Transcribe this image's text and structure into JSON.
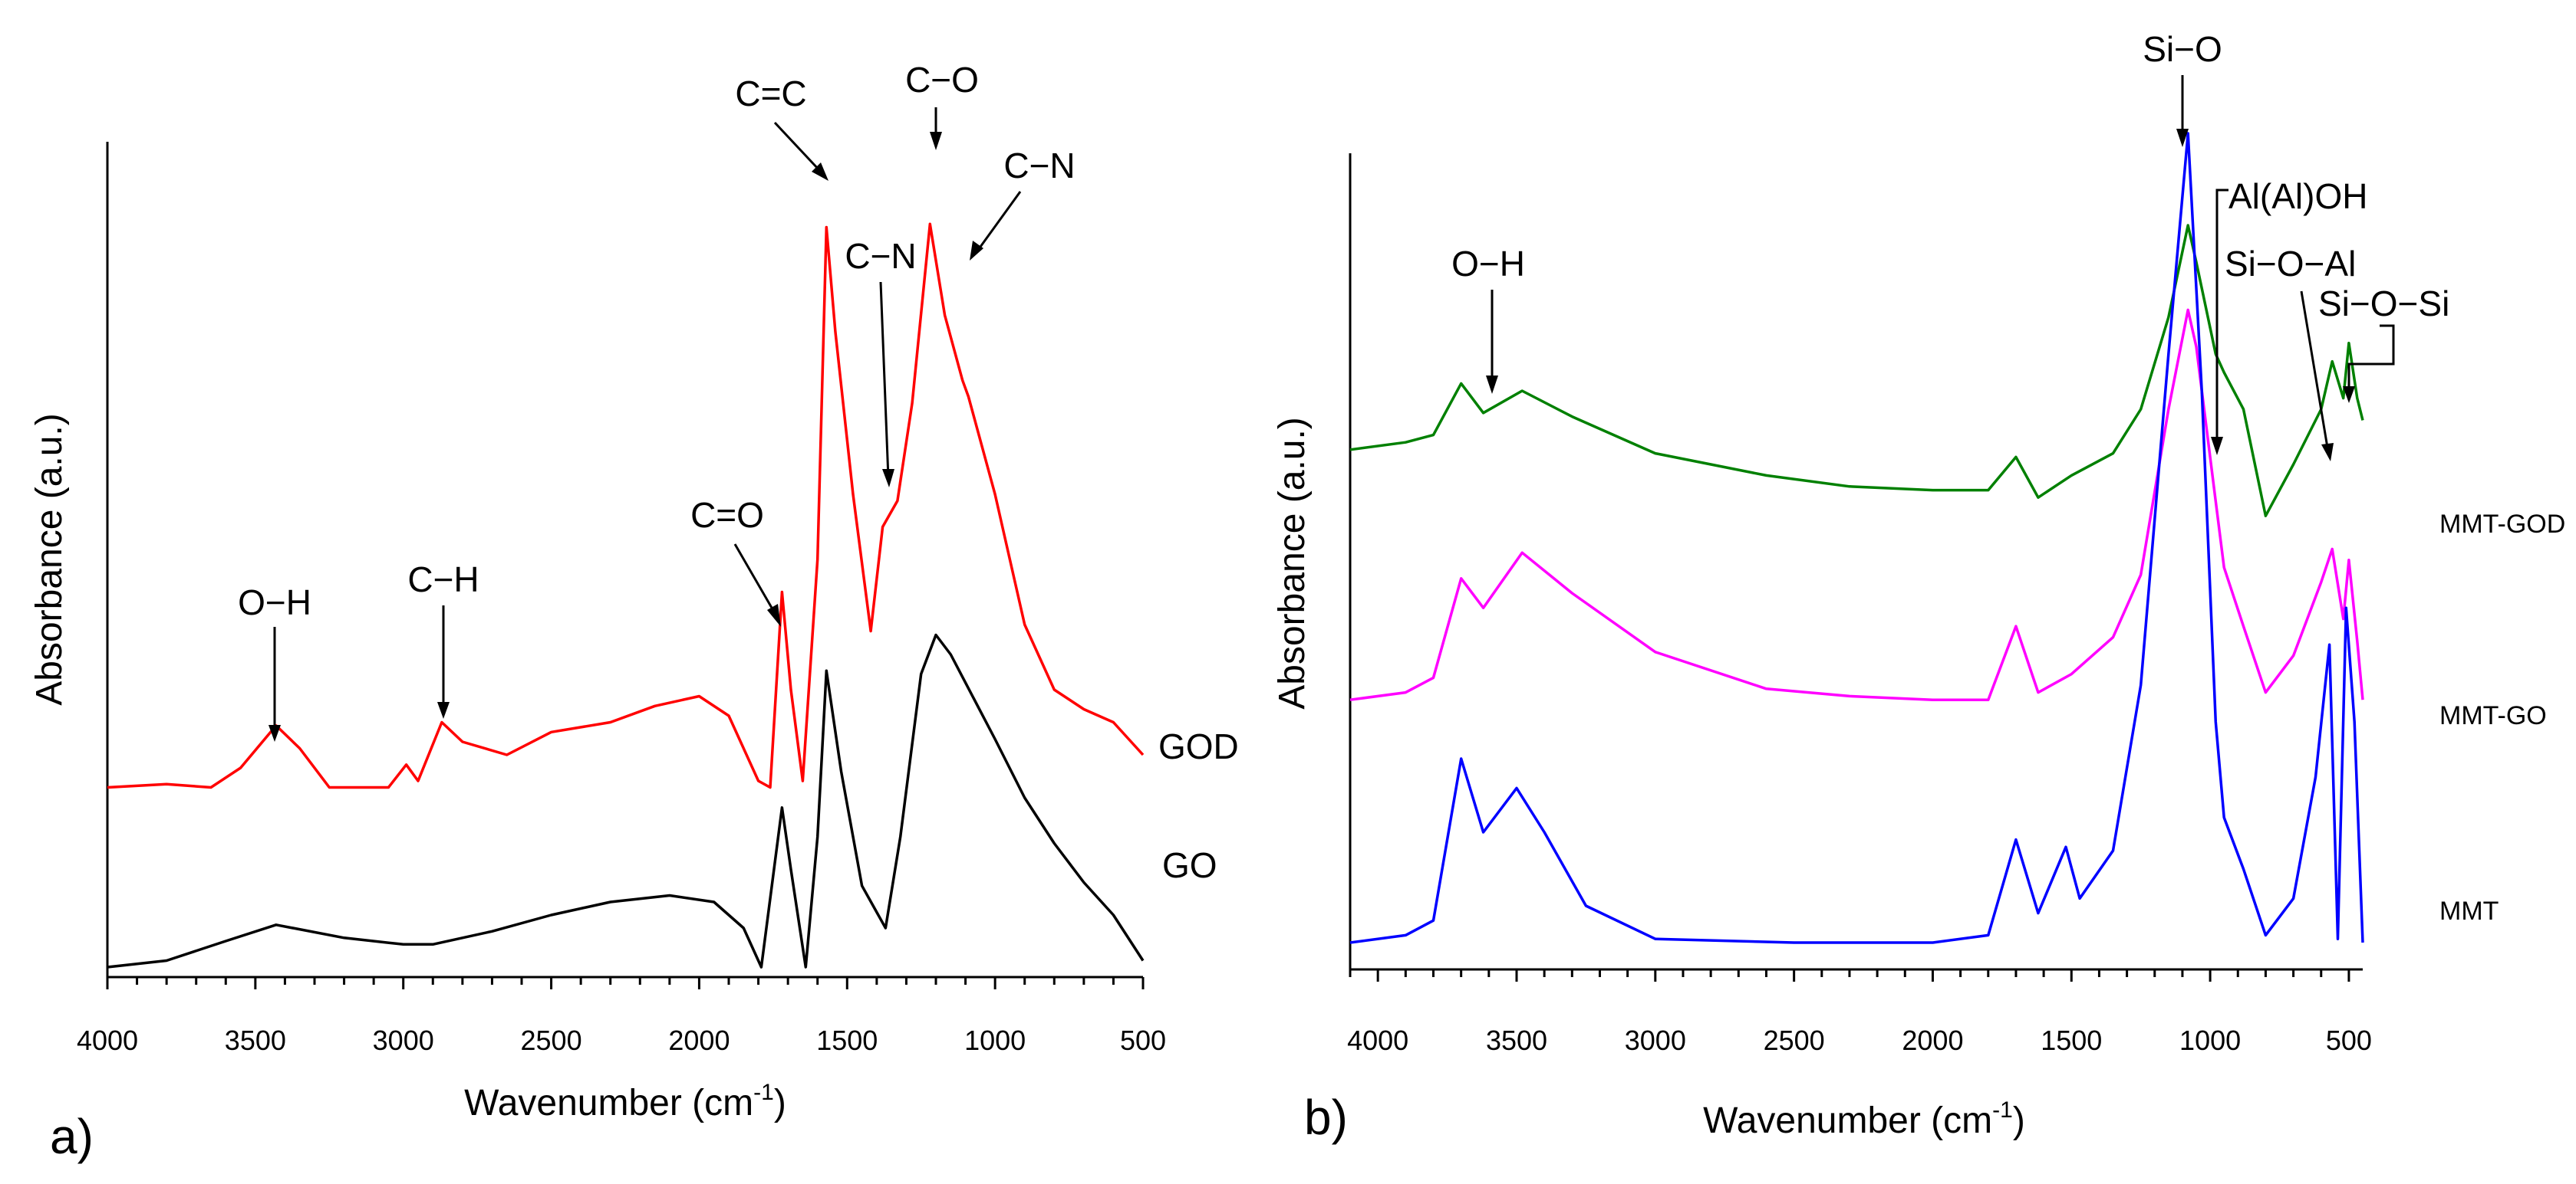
{
  "chart_data": [
    {
      "panel": "a)",
      "type": "line",
      "xlabel": "Wavenumber (cm",
      "xlabel_sup": "-1",
      "xlabel_close": ")",
      "ylabel": "Absorbance (a.u.)",
      "xlim": [
        4000,
        500
      ],
      "x_ticks": [
        4000,
        3500,
        3000,
        2500,
        2000,
        1500,
        1000,
        500
      ],
      "y_ticks_shown": false,
      "series": [
        {
          "name": "GOD",
          "color": "#ff0000",
          "points": [
            [
              4000,
              0.1
            ],
            [
              3800,
              0.11
            ],
            [
              3650,
              0.1
            ],
            [
              3550,
              0.16
            ],
            [
              3430,
              0.29
            ],
            [
              3350,
              0.22
            ],
            [
              3250,
              0.1
            ],
            [
              3050,
              0.1
            ],
            [
              2990,
              0.17
            ],
            [
              2950,
              0.12
            ],
            [
              2870,
              0.3
            ],
            [
              2800,
              0.24
            ],
            [
              2650,
              0.2
            ],
            [
              2500,
              0.27
            ],
            [
              2300,
              0.3
            ],
            [
              2150,
              0.35
            ],
            [
              2000,
              0.38
            ],
            [
              1900,
              0.32
            ],
            [
              1800,
              0.12
            ],
            [
              1760,
              0.1
            ],
            [
              1720,
              0.7
            ],
            [
              1690,
              0.4
            ],
            [
              1650,
              0.12
            ],
            [
              1600,
              0.8
            ],
            [
              1570,
              1.82
            ],
            [
              1540,
              1.5
            ],
            [
              1480,
              1.0
            ],
            [
              1420,
              0.58
            ],
            [
              1380,
              0.9
            ],
            [
              1330,
              0.98
            ],
            [
              1280,
              1.28
            ],
            [
              1220,
              1.83
            ],
            [
              1170,
              1.55
            ],
            [
              1110,
              1.35
            ],
            [
              1090,
              1.3
            ],
            [
              1000,
              1.0
            ],
            [
              900,
              0.6
            ],
            [
              800,
              0.4
            ],
            [
              700,
              0.34
            ],
            [
              600,
              0.3
            ],
            [
              500,
              0.2
            ]
          ]
        },
        {
          "name": "GO",
          "color": "#000000",
          "points": [
            [
              4000,
              0.0
            ],
            [
              3800,
              0.02
            ],
            [
              3600,
              0.08
            ],
            [
              3430,
              0.13
            ],
            [
              3200,
              0.09
            ],
            [
              3000,
              0.07
            ],
            [
              2900,
              0.07
            ],
            [
              2700,
              0.11
            ],
            [
              2500,
              0.16
            ],
            [
              2300,
              0.2
            ],
            [
              2100,
              0.22
            ],
            [
              1950,
              0.2
            ],
            [
              1850,
              0.12
            ],
            [
              1790,
              0.0
            ],
            [
              1720,
              0.49
            ],
            [
              1690,
              0.3
            ],
            [
              1640,
              0.0
            ],
            [
              1600,
              0.4
            ],
            [
              1570,
              0.91
            ],
            [
              1520,
              0.6
            ],
            [
              1450,
              0.25
            ],
            [
              1370,
              0.12
            ],
            [
              1320,
              0.4
            ],
            [
              1250,
              0.9
            ],
            [
              1200,
              1.02
            ],
            [
              1150,
              0.96
            ],
            [
              1000,
              0.7
            ],
            [
              900,
              0.52
            ],
            [
              800,
              0.38
            ],
            [
              700,
              0.26
            ],
            [
              600,
              0.16
            ],
            [
              500,
              0.02
            ]
          ]
        }
      ],
      "annotations": [
        {
          "text": "O−H",
          "wavenumber": 3430
        },
        {
          "text": "C−H",
          "wavenumber": 2870
        },
        {
          "text": "C=O",
          "wavenumber": 1720
        },
        {
          "text": "C=C",
          "wavenumber": 1570
        },
        {
          "text": "C−N",
          "wavenumber": 1370
        },
        {
          "text": "C−O",
          "wavenumber": 1220
        },
        {
          "text": "C−N",
          "wavenumber": 1090
        }
      ]
    },
    {
      "panel": "b)",
      "type": "line",
      "xlabel": "Wavenumber (cm",
      "xlabel_sup": "-1",
      "xlabel_close": ")",
      "ylabel": "Absorbance (a.u.)",
      "xlim": [
        4100,
        450
      ],
      "x_ticks": [
        4000,
        3500,
        3000,
        2500,
        2000,
        1500,
        1000,
        500
      ],
      "y_ticks_shown": false,
      "series": [
        {
          "name": "MMT-GOD",
          "color": "#008000",
          "points": [
            [
              4100,
              1.34
            ],
            [
              3900,
              1.36
            ],
            [
              3800,
              1.38
            ],
            [
              3700,
              1.52
            ],
            [
              3620,
              1.44
            ],
            [
              3480,
              1.5
            ],
            [
              3300,
              1.43
            ],
            [
              3000,
              1.33
            ],
            [
              2600,
              1.27
            ],
            [
              2300,
              1.24
            ],
            [
              2000,
              1.23
            ],
            [
              1800,
              1.23
            ],
            [
              1700,
              1.32
            ],
            [
              1620,
              1.21
            ],
            [
              1500,
              1.27
            ],
            [
              1350,
              1.33
            ],
            [
              1250,
              1.45
            ],
            [
              1150,
              1.7
            ],
            [
              1080,
              1.95
            ],
            [
              1050,
              1.85
            ],
            [
              980,
              1.6
            ],
            [
              950,
              1.55
            ],
            [
              880,
              1.45
            ],
            [
              800,
              1.16
            ],
            [
              700,
              1.3
            ],
            [
              600,
              1.45
            ],
            [
              560,
              1.58
            ],
            [
              520,
              1.48
            ],
            [
              500,
              1.63
            ],
            [
              470,
              1.48
            ],
            [
              450,
              1.42
            ]
          ]
        },
        {
          "name": "MMT-GO",
          "color": "#ff00ff",
          "points": [
            [
              4100,
              0.66
            ],
            [
              3900,
              0.68
            ],
            [
              3800,
              0.72
            ],
            [
              3700,
              0.99
            ],
            [
              3620,
              0.91
            ],
            [
              3480,
              1.06
            ],
            [
              3300,
              0.95
            ],
            [
              3000,
              0.79
            ],
            [
              2600,
              0.69
            ],
            [
              2300,
              0.67
            ],
            [
              2000,
              0.66
            ],
            [
              1800,
              0.66
            ],
            [
              1700,
              0.86
            ],
            [
              1620,
              0.68
            ],
            [
              1500,
              0.73
            ],
            [
              1350,
              0.83
            ],
            [
              1250,
              1.0
            ],
            [
              1150,
              1.45
            ],
            [
              1080,
              1.72
            ],
            [
              1050,
              1.62
            ],
            [
              980,
              1.2
            ],
            [
              950,
              1.02
            ],
            [
              880,
              0.86
            ],
            [
              800,
              0.68
            ],
            [
              700,
              0.78
            ],
            [
              600,
              0.98
            ],
            [
              560,
              1.07
            ],
            [
              520,
              0.88
            ],
            [
              500,
              1.04
            ],
            [
              470,
              0.82
            ],
            [
              450,
              0.66
            ]
          ]
        },
        {
          "name": "MMT",
          "color": "#0000ff",
          "points": [
            [
              4100,
              0.0
            ],
            [
              3900,
              0.02
            ],
            [
              3800,
              0.06
            ],
            [
              3700,
              0.5
            ],
            [
              3620,
              0.3
            ],
            [
              3500,
              0.42
            ],
            [
              3400,
              0.3
            ],
            [
              3250,
              0.1
            ],
            [
              3000,
              0.01
            ],
            [
              2500,
              0.0
            ],
            [
              2000,
              0.0
            ],
            [
              1800,
              0.02
            ],
            [
              1700,
              0.28
            ],
            [
              1620,
              0.08
            ],
            [
              1520,
              0.26
            ],
            [
              1470,
              0.12
            ],
            [
              1350,
              0.25
            ],
            [
              1250,
              0.7
            ],
            [
              1150,
              1.6
            ],
            [
              1080,
              2.2
            ],
            [
              1030,
              1.5
            ],
            [
              980,
              0.6
            ],
            [
              950,
              0.34
            ],
            [
              880,
              0.2
            ],
            [
              800,
              0.02
            ],
            [
              700,
              0.12
            ],
            [
              620,
              0.45
            ],
            [
              570,
              0.81
            ],
            [
              540,
              0.01
            ],
            [
              510,
              0.91
            ],
            [
              480,
              0.6
            ],
            [
              450,
              0.0
            ]
          ]
        }
      ],
      "annotations": [
        {
          "text": "O−H",
          "wavenumber": 3530
        },
        {
          "text": "Si−O",
          "wavenumber": 1080
        },
        {
          "text": "Al(Al)OH",
          "wavenumber": 950
        },
        {
          "text": "Si−O−Al",
          "wavenumber": 560
        },
        {
          "text": "Si−O−Si",
          "wavenumber": 500
        }
      ]
    }
  ],
  "colors": {
    "axis": "#000000",
    "background": "#ffffff"
  }
}
